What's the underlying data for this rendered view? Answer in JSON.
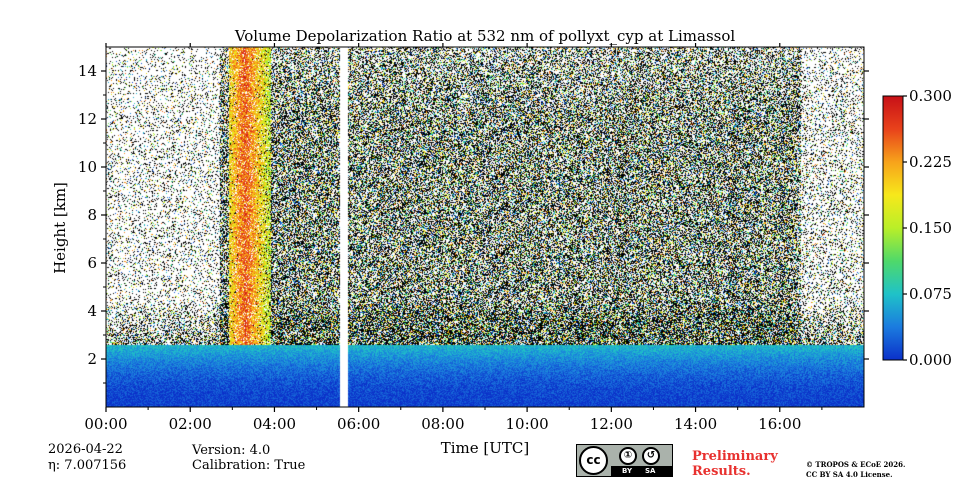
{
  "chart_data": {
    "type": "heatmap",
    "title": "Volume Depolarization Ratio at 532 nm of pollyxt_cyp at Limassol",
    "xlabel": "Time [UTC]",
    "ylabel": "Height [km]",
    "xlim": [
      0,
      18
    ],
    "ylim": [
      0,
      15
    ],
    "x_tick_values": [
      0,
      2,
      4,
      6,
      8,
      10,
      12,
      14,
      16
    ],
    "x_ticks": [
      "00:00",
      "02:00",
      "04:00",
      "06:00",
      "08:00",
      "10:00",
      "12:00",
      "14:00",
      "16:00"
    ],
    "y_ticks": [
      "2",
      "4",
      "6",
      "8",
      "10",
      "12",
      "14"
    ],
    "y_tick_values": [
      2,
      4,
      6,
      8,
      10,
      12,
      14
    ],
    "colorbar": {
      "min": 0.0,
      "max": 0.3,
      "ticks": [
        "0.000",
        "0.075",
        "0.150",
        "0.225",
        "0.300"
      ],
      "tick_values": [
        0.0,
        0.075,
        0.15,
        0.225,
        0.3
      ],
      "colormap": [
        "#0b30c9",
        "#1b7bdf",
        "#1fc2c8",
        "#4fd96a",
        "#b9ef28",
        "#f7e81b",
        "#f7a31b",
        "#e8421b",
        "#c71017"
      ]
    },
    "features": {
      "boundary_layer_top_km": 2.6,
      "data_gap_time_h": [
        5.55,
        5.73
      ],
      "depol_plume_time_h": [
        2.9,
        3.9
      ]
    }
  },
  "info": {
    "date": "2026-04-22",
    "eta": "η: 7.007156",
    "version": "Version: 4.0",
    "calibration": "Calibration: True"
  },
  "badge": {
    "cc": "cc",
    "by": "BY",
    "sa": "SA",
    "by_symbol": "①",
    "sa_symbol": "↺"
  },
  "notice": {
    "preliminary_1": "Preliminary",
    "preliminary_2": "Results.",
    "copyright_1": "© TROPOS & ECoE 2026.",
    "copyright_2": "CC BY SA 4.0 License."
  },
  "colors": {
    "nodata": "#ffffff",
    "noise_dark": "#000000",
    "prelim_red": "#e8312f"
  }
}
